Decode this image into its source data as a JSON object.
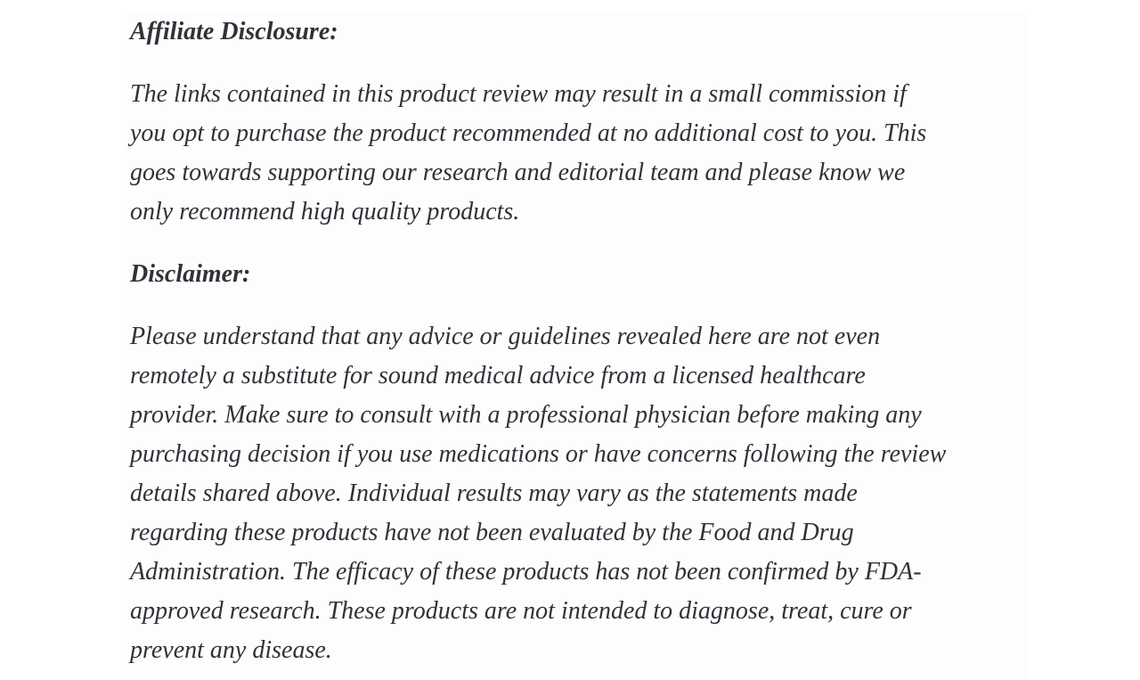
{
  "page": {
    "background_color": "#ffffff",
    "content_background_color": "#fdfdfd",
    "text_color": "#2f3238"
  },
  "article": {
    "sections": [
      {
        "heading": "Affiliate Disclosure:",
        "paragraph_lines": [
          "The links contained in this product review may result in a small commission if",
          "you opt to purchase the product recommended at no additional cost to you. This",
          "goes towards supporting our research and editorial team and please know we",
          "only recommend high quality products."
        ]
      },
      {
        "heading": "Disclaimer:",
        "paragraph_lines": [
          "Please understand that any advice or guidelines revealed here are not even",
          "remotely a substitute for sound medical advice from a licensed healthcare",
          "provider. Make sure to consult with a professional physician before making any",
          "purchasing decision if you use medications or have concerns following the review",
          "details shared above. Individual results may vary as the statements made",
          "regarding these products have not been evaluated by the Food and Drug",
          "Administration. The efficacy of these products has not been confirmed by FDA-",
          "approved research. These products are not intended to diagnose, treat, cure or",
          "prevent any disease."
        ]
      }
    ]
  }
}
